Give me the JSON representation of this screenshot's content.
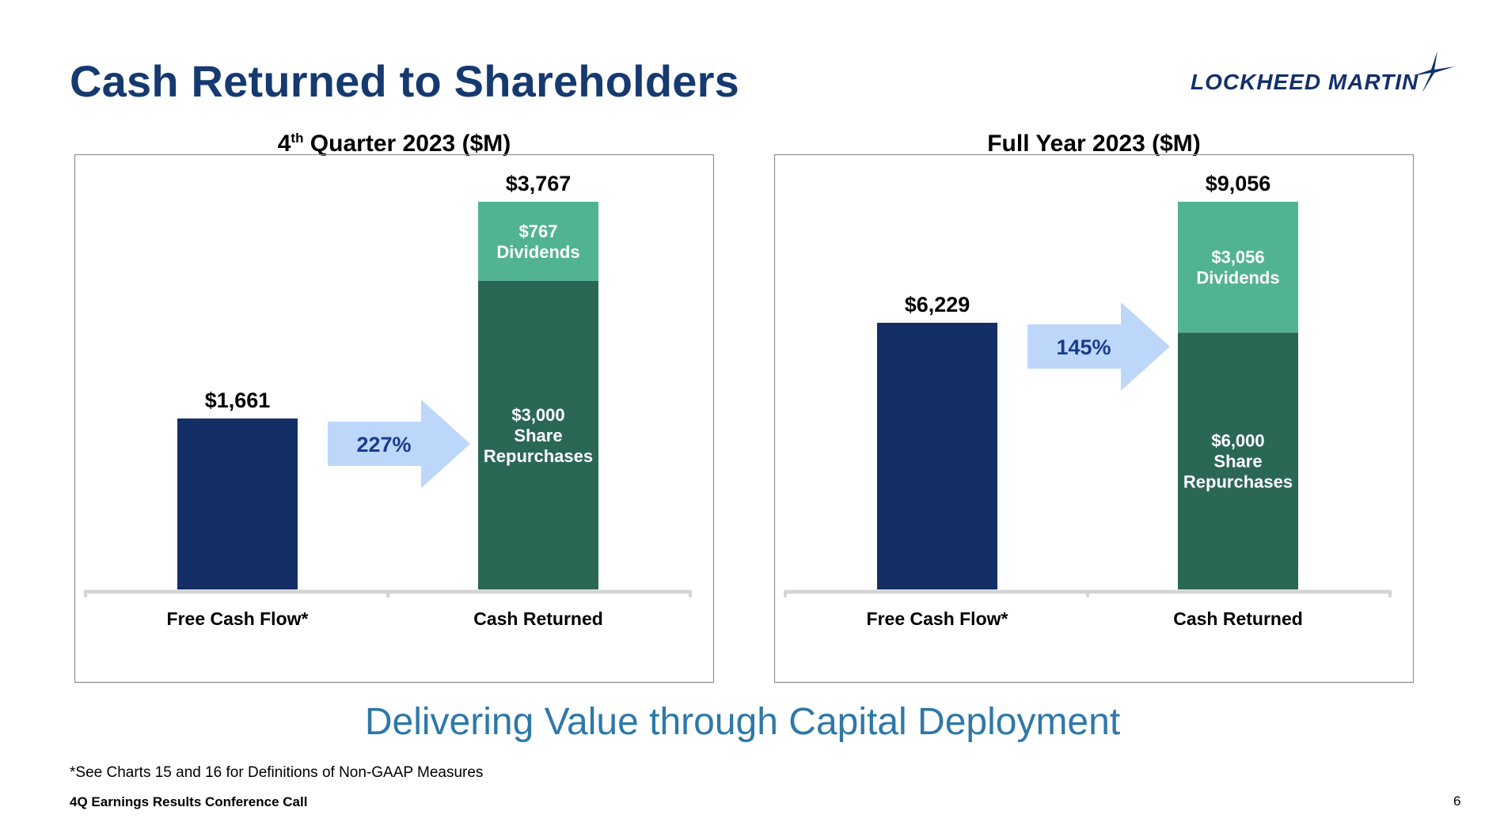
{
  "slide": {
    "title": "Cash Returned to Shareholders",
    "tagline": "Delivering Value through Capital Deployment",
    "footnote": "*See Charts 15 and 16 for Definitions of Non-GAAP Measures",
    "footer_left": "4Q Earnings Results Conference Call",
    "page_number": "6"
  },
  "logo": {
    "text": "LOCKHEED MARTIN",
    "icon": "star-icon"
  },
  "colors": {
    "title": "#163a70",
    "fcf_bar": "#142f66",
    "repurchases": "#2b6755",
    "dividends": "#52b393",
    "arrow": "#bdd7fb",
    "arrow_text": "#193d8a",
    "tagline": "#2e78a8"
  },
  "chart_data": [
    {
      "type": "bar",
      "title_main": "4",
      "title_sup": "th",
      "title_rest": " Quarter 2023 ($M)",
      "categories": [
        "Free Cash Flow*",
        "Cash Returned"
      ],
      "ylim": [
        0,
        3767
      ],
      "fcf": {
        "value": 1661,
        "label": "$1,661"
      },
      "stack": [
        {
          "value": 3000,
          "value_label": "$3,000",
          "name_lines": [
            "Share",
            "Repurchases"
          ]
        },
        {
          "value": 767,
          "value_label": "$767",
          "name_lines": [
            "Dividends"
          ]
        }
      ],
      "total_label": "$3,767",
      "arrow_label": "227%"
    },
    {
      "type": "bar",
      "title_main": "Full Year 2023 ($M)",
      "title_sup": "",
      "title_rest": "",
      "categories": [
        "Free Cash Flow*",
        "Cash Returned"
      ],
      "ylim": [
        0,
        9056
      ],
      "fcf": {
        "value": 6229,
        "label": "$6,229"
      },
      "stack": [
        {
          "value": 6000,
          "value_label": "$6,000",
          "name_lines": [
            "Share",
            "Repurchases"
          ]
        },
        {
          "value": 3056,
          "value_label": "$3,056",
          "name_lines": [
            "Dividends"
          ]
        }
      ],
      "total_label": "$9,056",
      "arrow_label": "145%"
    }
  ]
}
